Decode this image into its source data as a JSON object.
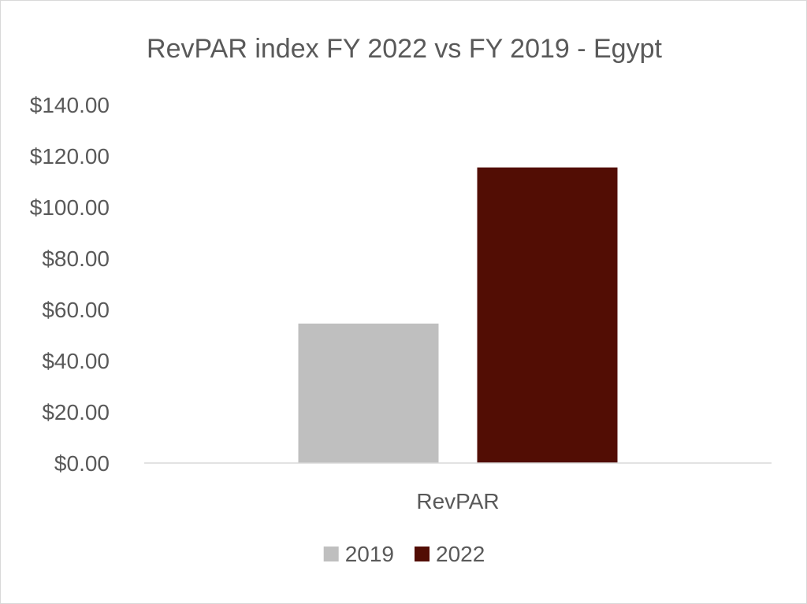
{
  "chart_data": {
    "type": "bar",
    "title": "RevPAR index FY 2022 vs FY 2019  - Egypt",
    "categories": [
      "RevPAR"
    ],
    "series": [
      {
        "name": "2019",
        "values": [
          54.5
        ],
        "color": "#bfbfbf"
      },
      {
        "name": "2022",
        "values": [
          115.5
        ],
        "color": "#520d04"
      }
    ],
    "ylim": [
      0,
      140
    ],
    "yticks": [
      0,
      20,
      40,
      60,
      80,
      100,
      120,
      140
    ],
    "ytick_labels": [
      "$0.00",
      "$20.00",
      "$40.00",
      "$60.00",
      "$80.00",
      "$100.00",
      "$120.00",
      "$140.00"
    ],
    "grid": false,
    "legend_position": "bottom",
    "axis_color": "#d9d9d9",
    "text_color": "#595959"
  }
}
